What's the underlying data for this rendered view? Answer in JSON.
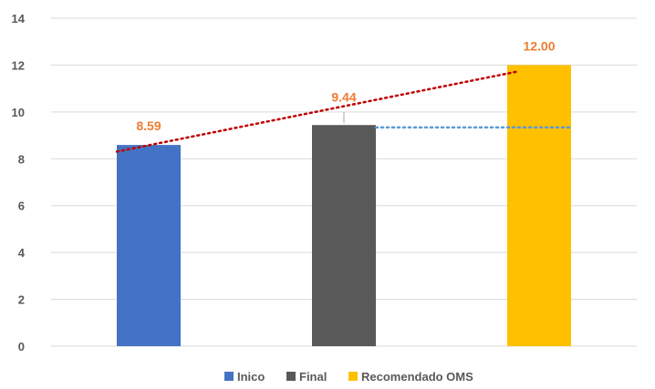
{
  "chart_data": {
    "type": "bar",
    "categories": [
      "Inico",
      "Final",
      "Recomendado OMS"
    ],
    "values": [
      8.59,
      9.44,
      12.0
    ],
    "data_labels": [
      "8.59",
      "9.44",
      "12.00"
    ],
    "colors": [
      "#4472C4",
      "#595959",
      "#FFC000"
    ],
    "label_color": "#ED7D31",
    "ylim": [
      0,
      14
    ],
    "yticks": [
      "0",
      "2",
      "4",
      "6",
      "8",
      "10",
      "12",
      "14"
    ],
    "grid": true,
    "legend": {
      "position": "bottom",
      "entries": [
        "Inico",
        "Final",
        "Recomendado OMS"
      ]
    },
    "trendline": {
      "type": "linear",
      "style": "dotted",
      "color": "#C00000"
    },
    "reference_line": {
      "value": 9.34,
      "style": "dotted",
      "color": "#5B9BD5"
    }
  }
}
